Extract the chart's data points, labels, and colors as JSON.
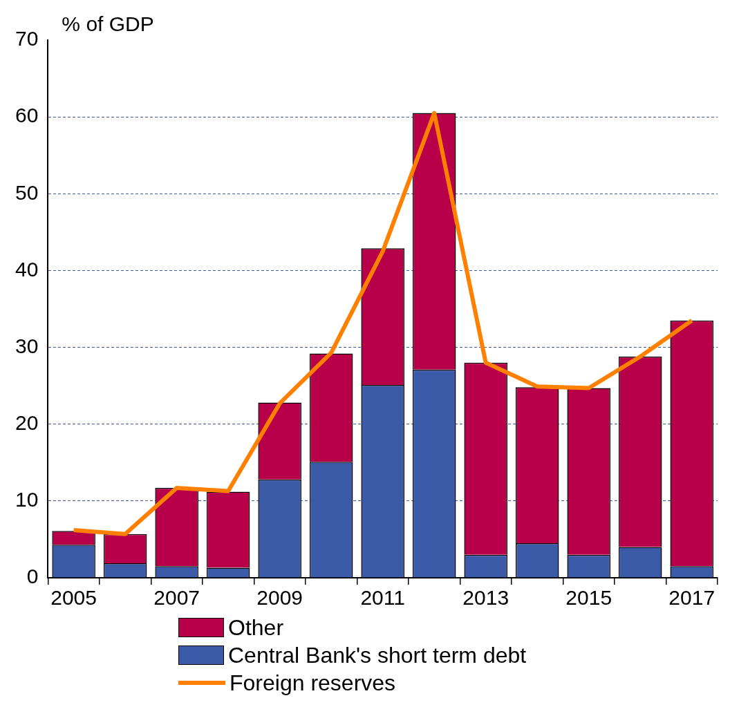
{
  "chart_data": {
    "type": "bar",
    "ylabel": "% of GDP",
    "categories": [
      "2005",
      null,
      "2007",
      null,
      "2009",
      null,
      "2011",
      null,
      "2013",
      null,
      "2015",
      null,
      "2017"
    ],
    "stacked": true,
    "series": [
      {
        "name": "Central Bank's short term debt",
        "color": "#3b5ba8",
        "values": [
          4.3,
          1.9,
          1.5,
          1.3,
          12.8,
          15.1,
          25.1,
          27.1,
          3.0,
          4.5,
          3.0,
          4.0,
          1.5
        ]
      },
      {
        "name": "Other",
        "color": "#b8004a",
        "values": [
          1.8,
          3.8,
          10.2,
          9.9,
          10.0,
          14.1,
          17.8,
          33.4,
          25.0,
          20.3,
          21.7,
          24.8,
          32.0
        ]
      },
      {
        "name": "Foreign reserves",
        "type": "line",
        "color": "#ff8000",
        "values": [
          6.2,
          5.7,
          11.7,
          11.3,
          22.7,
          29.3,
          42.5,
          60.5,
          28.0,
          24.9,
          24.7,
          28.8,
          33.5
        ]
      }
    ],
    "ylim": [
      0,
      70
    ],
    "yticks": [
      0,
      10,
      20,
      30,
      40,
      50,
      60,
      70
    ],
    "grid": "y",
    "legend": "bottom",
    "marker": "none",
    "line_style": "solid"
  }
}
